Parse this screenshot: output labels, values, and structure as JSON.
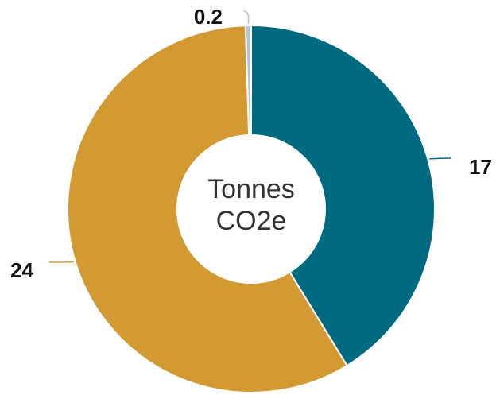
{
  "chart_data": {
    "type": "pie",
    "donut": true,
    "center_label": [
      "Tonnes",
      "CO2e"
    ],
    "slices": [
      {
        "value": 17,
        "label": "17",
        "color": "#006a80"
      },
      {
        "value": 24,
        "label": "24",
        "color": "#d39a34"
      },
      {
        "value": 0.2,
        "label": "0.2",
        "color": "#b8c3cc"
      }
    ],
    "slice_border_color": "#ffffff"
  }
}
